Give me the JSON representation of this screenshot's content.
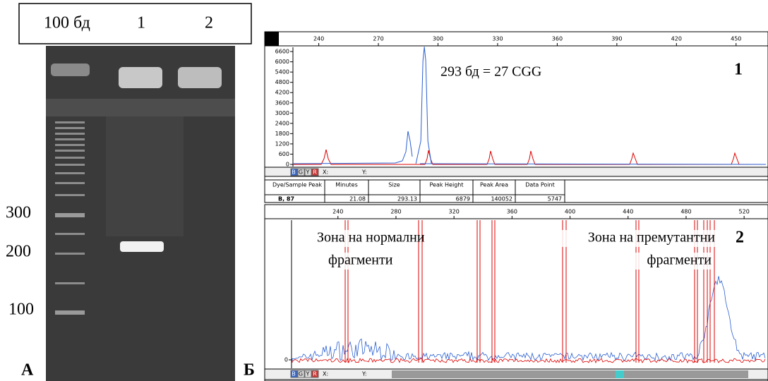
{
  "gel": {
    "header": [
      "100 бд",
      "1",
      "2"
    ],
    "markers": [
      300,
      200,
      100
    ],
    "panel_label": "А"
  },
  "panel_label_b": "Б",
  "toolbar": [
    "B",
    "G",
    "Y",
    "R",
    "X:",
    "Y:"
  ],
  "electropherogram_1": {
    "label": "1",
    "annotation": "293 бд = 27 CGG",
    "xticks": [
      240,
      270,
      300,
      330,
      360,
      390,
      420,
      450
    ],
    "xlim": [
      227,
      465
    ],
    "yticks": [
      0,
      600,
      1200,
      1800,
      2400,
      3000,
      3600,
      4200,
      4800,
      5400,
      6000,
      6600
    ],
    "ylim": [
      0,
      6850
    ]
  },
  "table": {
    "columns": [
      "Dye/Sample Peak",
      "Minutes",
      "Size",
      "Peak Height",
      "Peak Area",
      "Data Point"
    ],
    "rows": [
      [
        "B, 87",
        21.08,
        293.13,
        6879,
        140052,
        5747
      ]
    ]
  },
  "electropherogram_2": {
    "label": "2",
    "xticks": [
      240,
      280,
      320,
      360,
      400,
      440,
      480,
      520
    ],
    "xlim": [
      208,
      535
    ],
    "yticks": [
      0
    ],
    "annotations": [
      "Зона на нормални",
      "фрагменти",
      "Зона на премутантни",
      "фрагменти"
    ]
  }
}
